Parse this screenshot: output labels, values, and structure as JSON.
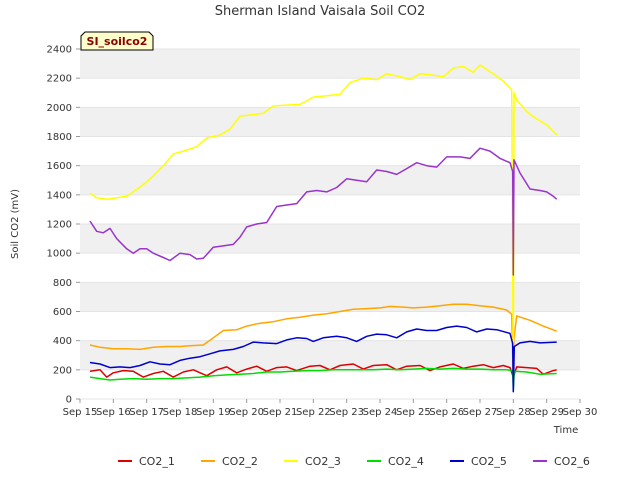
{
  "chart_data": {
    "type": "line",
    "title": "Sherman Island Vaisala Soil CO2",
    "badge": "SI_soilco2",
    "xlabel": "Time",
    "ylabel": "Soil CO2 (mV)",
    "xlim": [
      15,
      30
    ],
    "ylim": [
      0,
      2400
    ],
    "x_ticks": [
      15,
      16,
      17,
      18,
      19,
      20,
      21,
      22,
      23,
      24,
      25,
      26,
      27,
      28,
      29,
      30
    ],
    "x_tick_labels": [
      "Sep 15",
      "Sep 16",
      "Sep 17",
      "Sep 18",
      "Sep 19",
      "Sep 20",
      "Sep 21",
      "Sep 22",
      "Sep 23",
      "Sep 24",
      "Sep 25",
      "Sep 26",
      "Sep 27",
      "Sep 28",
      "Sep 29",
      "Sep 30"
    ],
    "y_ticks": [
      0,
      200,
      400,
      600,
      800,
      1000,
      1200,
      1400,
      1600,
      1800,
      2000,
      2200,
      2400
    ],
    "grid": "horizontal bands",
    "legend_position": "bottom",
    "series": [
      {
        "name": "CO2_1",
        "color": "#dd0000",
        "points": [
          [
            15.3,
            190
          ],
          [
            15.6,
            200
          ],
          [
            15.8,
            150
          ],
          [
            16.0,
            180
          ],
          [
            16.3,
            195
          ],
          [
            16.6,
            190
          ],
          [
            16.9,
            150
          ],
          [
            17.2,
            175
          ],
          [
            17.5,
            190
          ],
          [
            17.8,
            150
          ],
          [
            18.1,
            185
          ],
          [
            18.4,
            200
          ],
          [
            18.8,
            160
          ],
          [
            19.1,
            200
          ],
          [
            19.4,
            220
          ],
          [
            19.7,
            180
          ],
          [
            20.0,
            205
          ],
          [
            20.3,
            225
          ],
          [
            20.6,
            190
          ],
          [
            20.9,
            215
          ],
          [
            21.2,
            220
          ],
          [
            21.5,
            195
          ],
          [
            21.9,
            225
          ],
          [
            22.2,
            230
          ],
          [
            22.5,
            200
          ],
          [
            22.8,
            230
          ],
          [
            23.2,
            240
          ],
          [
            23.5,
            205
          ],
          [
            23.8,
            230
          ],
          [
            24.2,
            235
          ],
          [
            24.5,
            200
          ],
          [
            24.8,
            225
          ],
          [
            25.2,
            230
          ],
          [
            25.5,
            195
          ],
          [
            25.8,
            220
          ],
          [
            26.2,
            240
          ],
          [
            26.5,
            210
          ],
          [
            26.8,
            225
          ],
          [
            27.1,
            235
          ],
          [
            27.4,
            215
          ],
          [
            27.7,
            230
          ],
          [
            27.9,
            215
          ],
          [
            28.0,
            150
          ],
          [
            28.1,
            220
          ],
          [
            28.4,
            215
          ],
          [
            28.7,
            210
          ],
          [
            28.9,
            170
          ],
          [
            29.2,
            195
          ],
          [
            29.3,
            200
          ]
        ]
      },
      {
        "name": "CO2_2",
        "color": "#ffa500",
        "points": [
          [
            15.3,
            370
          ],
          [
            15.6,
            355
          ],
          [
            16.0,
            345
          ],
          [
            16.4,
            345
          ],
          [
            16.8,
            340
          ],
          [
            17.2,
            355
          ],
          [
            17.6,
            360
          ],
          [
            18.0,
            360
          ],
          [
            18.3,
            365
          ],
          [
            18.7,
            370
          ],
          [
            19.0,
            420
          ],
          [
            19.3,
            470
          ],
          [
            19.7,
            475
          ],
          [
            20.0,
            500
          ],
          [
            20.4,
            520
          ],
          [
            20.8,
            530
          ],
          [
            21.2,
            550
          ],
          [
            21.6,
            560
          ],
          [
            22.0,
            575
          ],
          [
            22.4,
            585
          ],
          [
            22.8,
            600
          ],
          [
            23.2,
            615
          ],
          [
            23.6,
            620
          ],
          [
            24.0,
            625
          ],
          [
            24.3,
            635
          ],
          [
            24.7,
            630
          ],
          [
            25.0,
            625
          ],
          [
            25.4,
            630
          ],
          [
            25.8,
            640
          ],
          [
            26.2,
            650
          ],
          [
            26.6,
            650
          ],
          [
            27.0,
            640
          ],
          [
            27.4,
            630
          ],
          [
            27.8,
            610
          ],
          [
            27.95,
            580
          ],
          [
            28.0,
            120
          ],
          [
            28.02,
            420
          ],
          [
            28.1,
            570
          ],
          [
            28.5,
            540
          ],
          [
            28.9,
            500
          ],
          [
            29.3,
            465
          ]
        ]
      },
      {
        "name": "CO2_3",
        "color": "#ffff00",
        "points": [
          [
            15.3,
            1410
          ],
          [
            15.5,
            1380
          ],
          [
            15.8,
            1370
          ],
          [
            16.1,
            1380
          ],
          [
            16.4,
            1390
          ],
          [
            16.6,
            1420
          ],
          [
            16.9,
            1470
          ],
          [
            17.2,
            1530
          ],
          [
            17.5,
            1600
          ],
          [
            17.8,
            1680
          ],
          [
            18.1,
            1700
          ],
          [
            18.5,
            1730
          ],
          [
            18.8,
            1790
          ],
          [
            19.2,
            1810
          ],
          [
            19.5,
            1850
          ],
          [
            19.8,
            1940
          ],
          [
            20.2,
            1950
          ],
          [
            20.5,
            1960
          ],
          [
            20.8,
            2010
          ],
          [
            21.2,
            2015
          ],
          [
            21.6,
            2020
          ],
          [
            22.0,
            2070
          ],
          [
            22.4,
            2080
          ],
          [
            22.8,
            2090
          ],
          [
            23.1,
            2170
          ],
          [
            23.5,
            2200
          ],
          [
            23.9,
            2190
          ],
          [
            24.2,
            2230
          ],
          [
            24.6,
            2210
          ],
          [
            24.9,
            2190
          ],
          [
            25.2,
            2230
          ],
          [
            25.6,
            2220
          ],
          [
            25.9,
            2210
          ],
          [
            26.2,
            2270
          ],
          [
            26.5,
            2280
          ],
          [
            26.8,
            2240
          ],
          [
            27.0,
            2290
          ],
          [
            27.4,
            2230
          ],
          [
            27.7,
            2180
          ],
          [
            27.95,
            2120
          ],
          [
            28.0,
            150
          ],
          [
            28.02,
            2100
          ],
          [
            28.1,
            2050
          ],
          [
            28.4,
            1970
          ],
          [
            28.7,
            1920
          ],
          [
            29.0,
            1880
          ],
          [
            29.3,
            1810
          ]
        ]
      },
      {
        "name": "CO2_4",
        "color": "#00dd00",
        "points": [
          [
            15.3,
            150
          ],
          [
            15.6,
            140
          ],
          [
            15.9,
            130
          ],
          [
            16.2,
            135
          ],
          [
            16.6,
            140
          ],
          [
            17.0,
            135
          ],
          [
            17.4,
            140
          ],
          [
            17.8,
            140
          ],
          [
            18.2,
            145
          ],
          [
            18.6,
            150
          ],
          [
            19.0,
            160
          ],
          [
            19.4,
            165
          ],
          [
            19.8,
            170
          ],
          [
            20.2,
            175
          ],
          [
            20.6,
            185
          ],
          [
            21.0,
            185
          ],
          [
            21.4,
            190
          ],
          [
            21.8,
            195
          ],
          [
            22.2,
            195
          ],
          [
            22.6,
            200
          ],
          [
            23.0,
            200
          ],
          [
            23.4,
            200
          ],
          [
            23.8,
            200
          ],
          [
            24.2,
            205
          ],
          [
            24.6,
            200
          ],
          [
            25.0,
            205
          ],
          [
            25.4,
            210
          ],
          [
            25.8,
            205
          ],
          [
            26.2,
            210
          ],
          [
            26.6,
            205
          ],
          [
            27.0,
            205
          ],
          [
            27.4,
            200
          ],
          [
            27.8,
            200
          ],
          [
            27.98,
            195
          ],
          [
            28.0,
            60
          ],
          [
            28.03,
            190
          ],
          [
            28.4,
            185
          ],
          [
            28.8,
            170
          ],
          [
            29.3,
            175
          ]
        ]
      },
      {
        "name": "CO2_5",
        "color": "#0000cc",
        "points": [
          [
            15.3,
            250
          ],
          [
            15.6,
            240
          ],
          [
            15.9,
            215
          ],
          [
            16.2,
            220
          ],
          [
            16.5,
            215
          ],
          [
            16.8,
            230
          ],
          [
            17.1,
            255
          ],
          [
            17.4,
            240
          ],
          [
            17.7,
            235
          ],
          [
            18.0,
            265
          ],
          [
            18.3,
            280
          ],
          [
            18.6,
            290
          ],
          [
            18.9,
            310
          ],
          [
            19.2,
            330
          ],
          [
            19.6,
            340
          ],
          [
            19.9,
            360
          ],
          [
            20.2,
            390
          ],
          [
            20.5,
            385
          ],
          [
            20.9,
            380
          ],
          [
            21.2,
            405
          ],
          [
            21.5,
            420
          ],
          [
            21.8,
            415
          ],
          [
            22.0,
            395
          ],
          [
            22.3,
            420
          ],
          [
            22.7,
            430
          ],
          [
            23.0,
            420
          ],
          [
            23.3,
            395
          ],
          [
            23.6,
            430
          ],
          [
            23.9,
            445
          ],
          [
            24.2,
            440
          ],
          [
            24.5,
            420
          ],
          [
            24.8,
            460
          ],
          [
            25.1,
            480
          ],
          [
            25.4,
            470
          ],
          [
            25.7,
            470
          ],
          [
            26.0,
            490
          ],
          [
            26.3,
            500
          ],
          [
            26.6,
            490
          ],
          [
            26.9,
            460
          ],
          [
            27.2,
            480
          ],
          [
            27.5,
            475
          ],
          [
            27.9,
            450
          ],
          [
            27.98,
            380
          ],
          [
            28.0,
            50
          ],
          [
            28.03,
            360
          ],
          [
            28.2,
            385
          ],
          [
            28.5,
            395
          ],
          [
            28.8,
            385
          ],
          [
            29.3,
            390
          ]
        ]
      },
      {
        "name": "CO2_6",
        "color": "#9933cc",
        "points": [
          [
            15.3,
            1220
          ],
          [
            15.5,
            1150
          ],
          [
            15.7,
            1140
          ],
          [
            15.9,
            1170
          ],
          [
            16.1,
            1100
          ],
          [
            16.4,
            1030
          ],
          [
            16.6,
            1000
          ],
          [
            16.8,
            1030
          ],
          [
            17.0,
            1030
          ],
          [
            17.2,
            1000
          ],
          [
            17.5,
            970
          ],
          [
            17.7,
            950
          ],
          [
            18.0,
            1000
          ],
          [
            18.3,
            990
          ],
          [
            18.5,
            960
          ],
          [
            18.7,
            965
          ],
          [
            19.0,
            1040
          ],
          [
            19.3,
            1050
          ],
          [
            19.6,
            1060
          ],
          [
            19.8,
            1110
          ],
          [
            20.0,
            1180
          ],
          [
            20.3,
            1200
          ],
          [
            20.6,
            1210
          ],
          [
            20.9,
            1320
          ],
          [
            21.2,
            1330
          ],
          [
            21.5,
            1340
          ],
          [
            21.8,
            1420
          ],
          [
            22.1,
            1430
          ],
          [
            22.4,
            1420
          ],
          [
            22.7,
            1450
          ],
          [
            23.0,
            1510
          ],
          [
            23.3,
            1500
          ],
          [
            23.6,
            1490
          ],
          [
            23.9,
            1570
          ],
          [
            24.2,
            1560
          ],
          [
            24.5,
            1540
          ],
          [
            24.8,
            1580
          ],
          [
            25.1,
            1620
          ],
          [
            25.4,
            1600
          ],
          [
            25.7,
            1590
          ],
          [
            26.0,
            1660
          ],
          [
            26.4,
            1660
          ],
          [
            26.7,
            1650
          ],
          [
            27.0,
            1720
          ],
          [
            27.3,
            1700
          ],
          [
            27.6,
            1650
          ],
          [
            27.9,
            1620
          ],
          [
            27.98,
            1560
          ],
          [
            28.0,
            850
          ],
          [
            28.02,
            1640
          ],
          [
            28.2,
            1550
          ],
          [
            28.5,
            1440
          ],
          [
            28.8,
            1430
          ],
          [
            29.0,
            1420
          ],
          [
            29.2,
            1390
          ],
          [
            29.3,
            1370
          ]
        ]
      }
    ]
  }
}
